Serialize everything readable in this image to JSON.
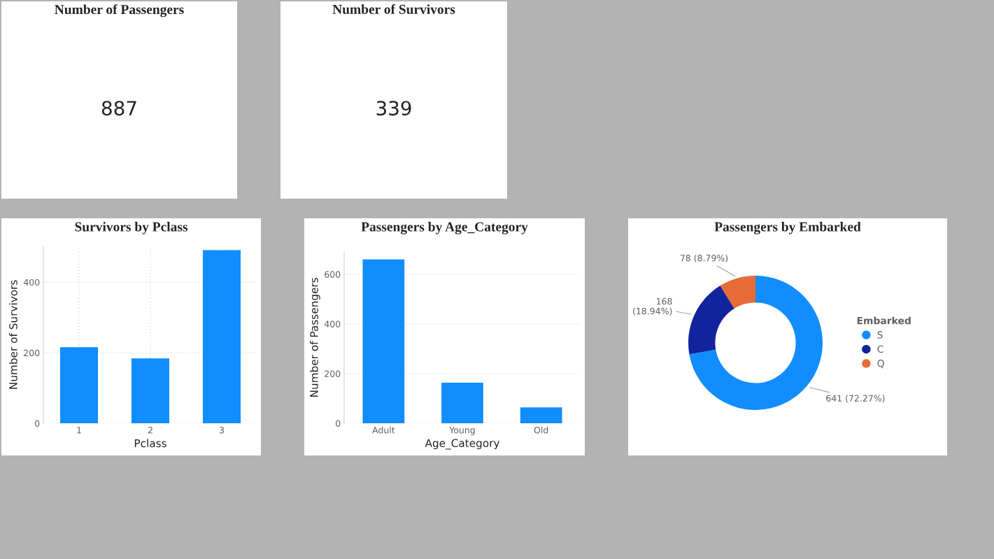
{
  "chart_data": [
    {
      "type": "other",
      "title": "Number of Passengers",
      "annotations": [
        "887"
      ]
    },
    {
      "type": "other",
      "title": "Number of Survivors",
      "annotations": [
        "339"
      ]
    },
    {
      "type": "bar",
      "title": "Survivors by Pclass",
      "xlabel": "Pclass",
      "ylabel": "Number of Survivors",
      "categories": [
        "1",
        "2",
        "3"
      ],
      "values": [
        216,
        184,
        491
      ],
      "color": "#118dff",
      "ylim": [
        0,
        502
      ],
      "yticks": [
        0,
        200,
        400
      ],
      "grid": true
    },
    {
      "type": "bar",
      "title": "Passengers by Age_Category",
      "xlabel": "Age_Category",
      "ylabel": "Number of Passengers",
      "categories": [
        "Adult",
        "Young",
        "Old"
      ],
      "values": [
        660,
        163,
        64
      ],
      "color": "#118dff",
      "ylim": [
        0,
        690
      ],
      "yticks": [
        0,
        200,
        400,
        600
      ],
      "grid": "y"
    },
    {
      "type": "donut",
      "title": "Passengers by Embarked",
      "legend_title": "Embarked",
      "legend": "right",
      "categories": [
        "S",
        "C",
        "Q"
      ],
      "values": [
        641,
        168,
        78
      ],
      "colors": [
        "#118dff",
        "#12239e",
        "#e66c37"
      ],
      "value_labels": [
        "641 (72.27%)",
        "168\n(18.94%)",
        "78 (8.79%)"
      ]
    }
  ]
}
